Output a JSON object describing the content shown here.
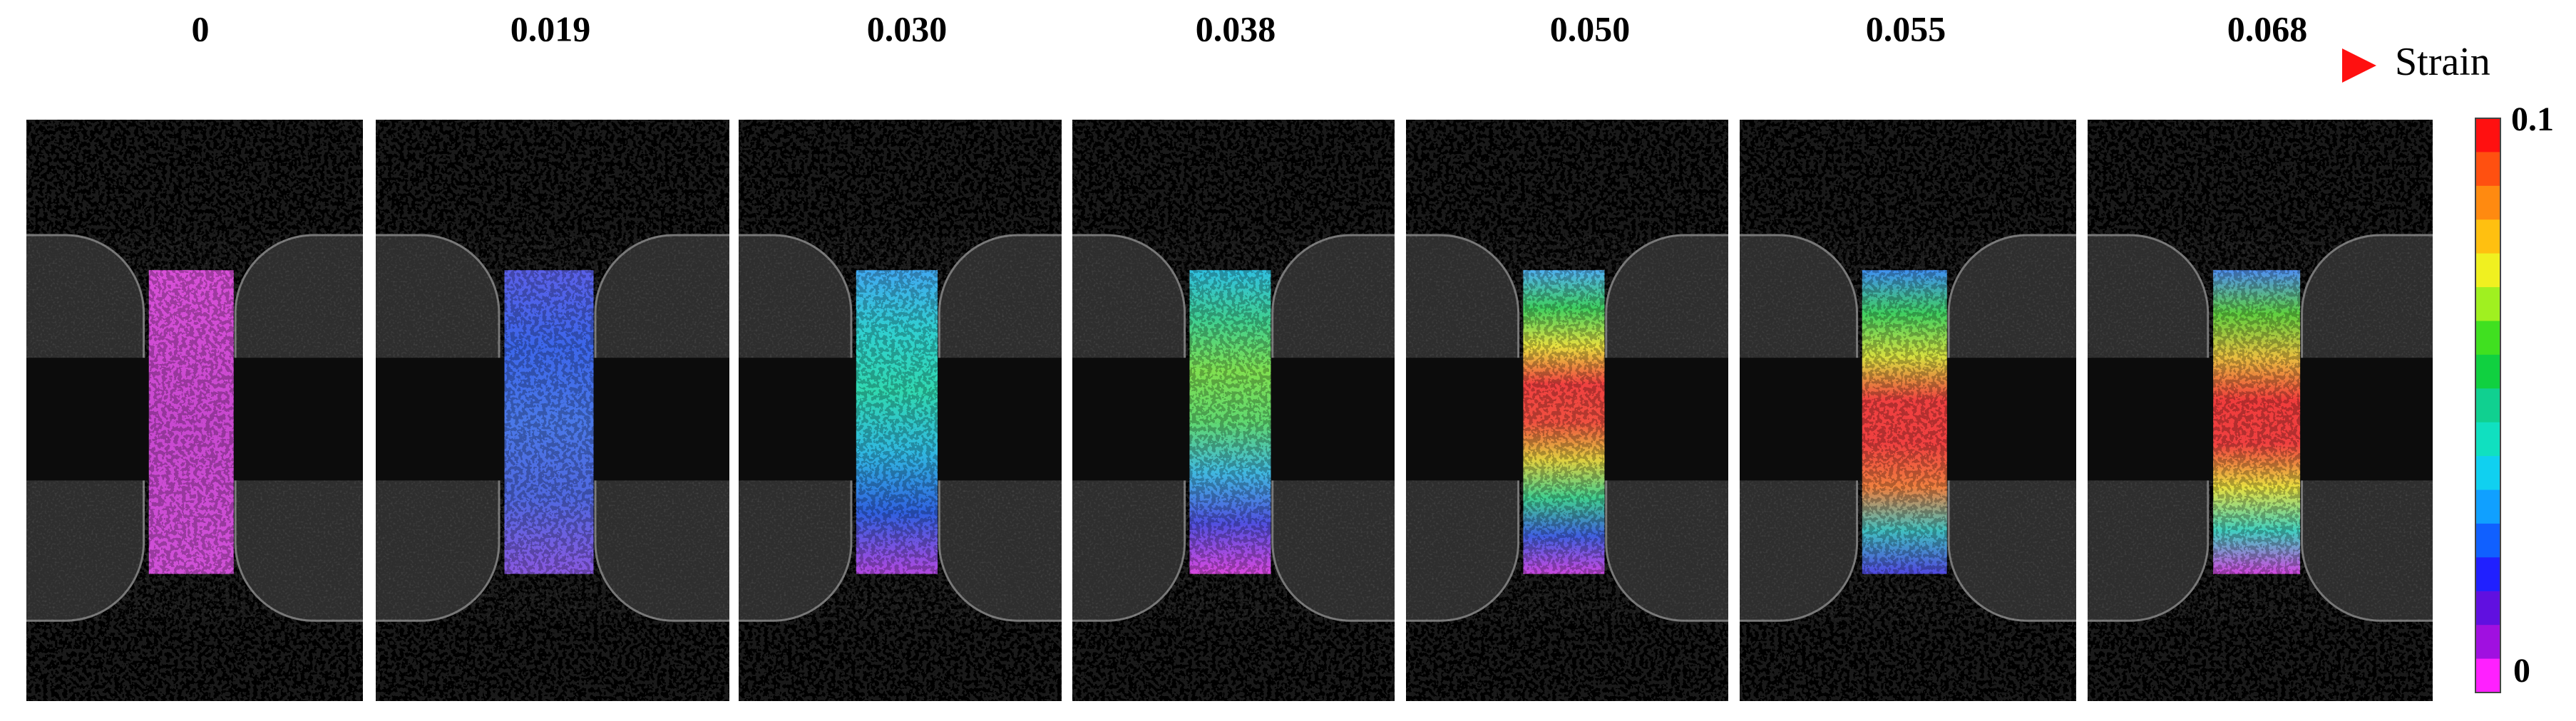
{
  "strain_steps": [
    "0",
    "0.019",
    "0.030",
    "0.038",
    "0.050",
    "0.055",
    "0.068"
  ],
  "axis_label": "Strain",
  "colorbar": {
    "max": "0.1",
    "min": "0"
  }
}
